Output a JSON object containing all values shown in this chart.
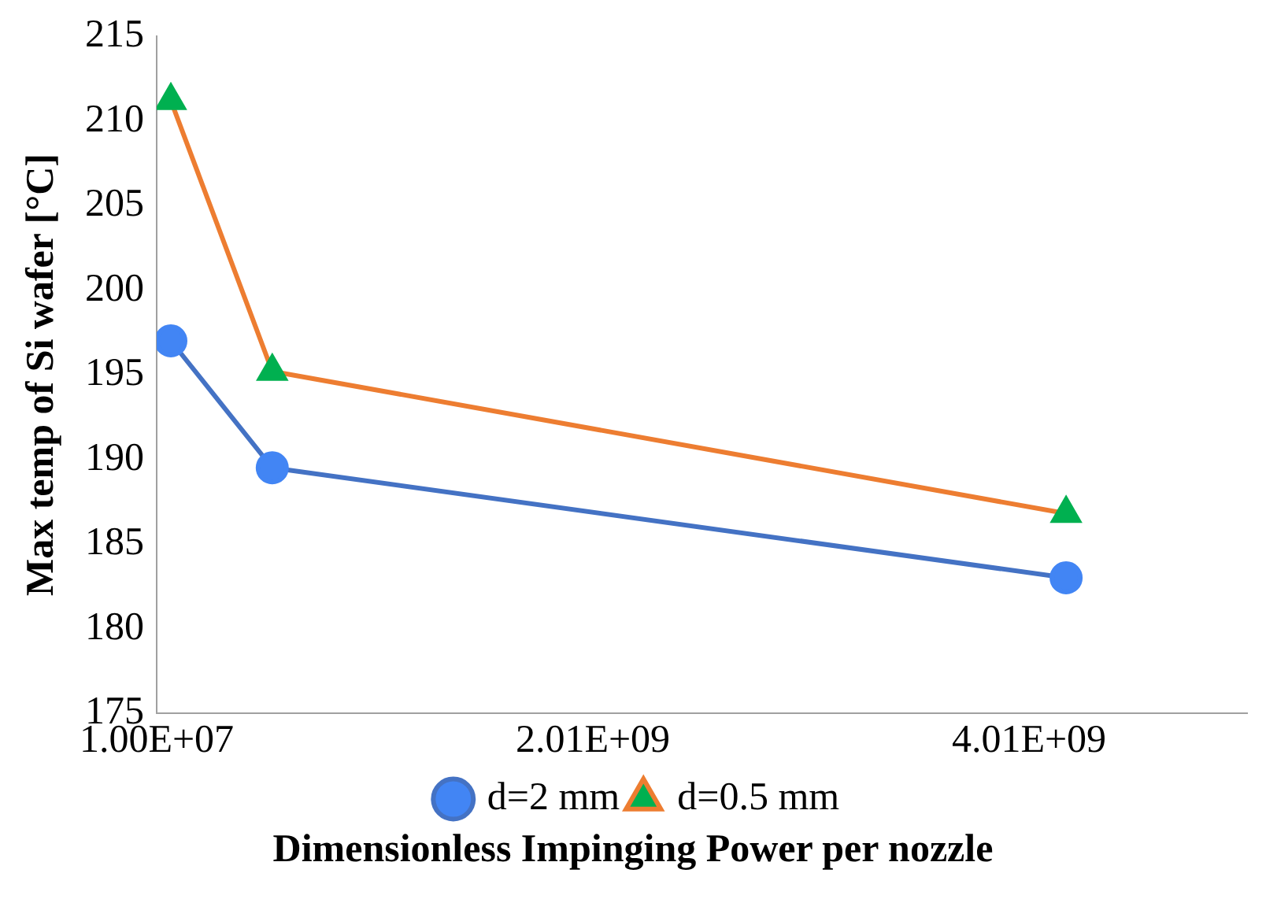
{
  "chart_data": {
    "type": "line",
    "xlabel": "Dimensionless Impinging Power per nozzle",
    "ylabel": "Max temp of Si wafer [°C]",
    "x": [
      75000000.0,
      540000000.0,
      4180000000.0
    ],
    "xlim": [
      10000000.0,
      5010000000.0
    ],
    "xticks": [
      {
        "value": 10000000.0,
        "label": "1.00E+07"
      },
      {
        "value": 2010000000.0,
        "label": "2.01E+09"
      },
      {
        "value": 4010000000.0,
        "label": "4.01E+09"
      }
    ],
    "ylim": [
      175,
      215
    ],
    "yticks": [
      175,
      180,
      185,
      190,
      195,
      200,
      205,
      210,
      215
    ],
    "grid": false,
    "legend": "bottom",
    "series": [
      {
        "name": "d=2 mm",
        "color": "#4472c4",
        "colors": [
          "#4285f4",
          "#4285f4",
          "#4285f4"
        ],
        "marker": "circle",
        "values": [
          197.0,
          189.5,
          183.0
        ]
      },
      {
        "name": "d=0.5 mm",
        "color": "#ed7d31",
        "colors": [
          "#00b050",
          "#00b050",
          "#00b050"
        ],
        "marker": "triangle",
        "values": [
          211.2,
          195.2,
          186.8
        ]
      }
    ]
  }
}
